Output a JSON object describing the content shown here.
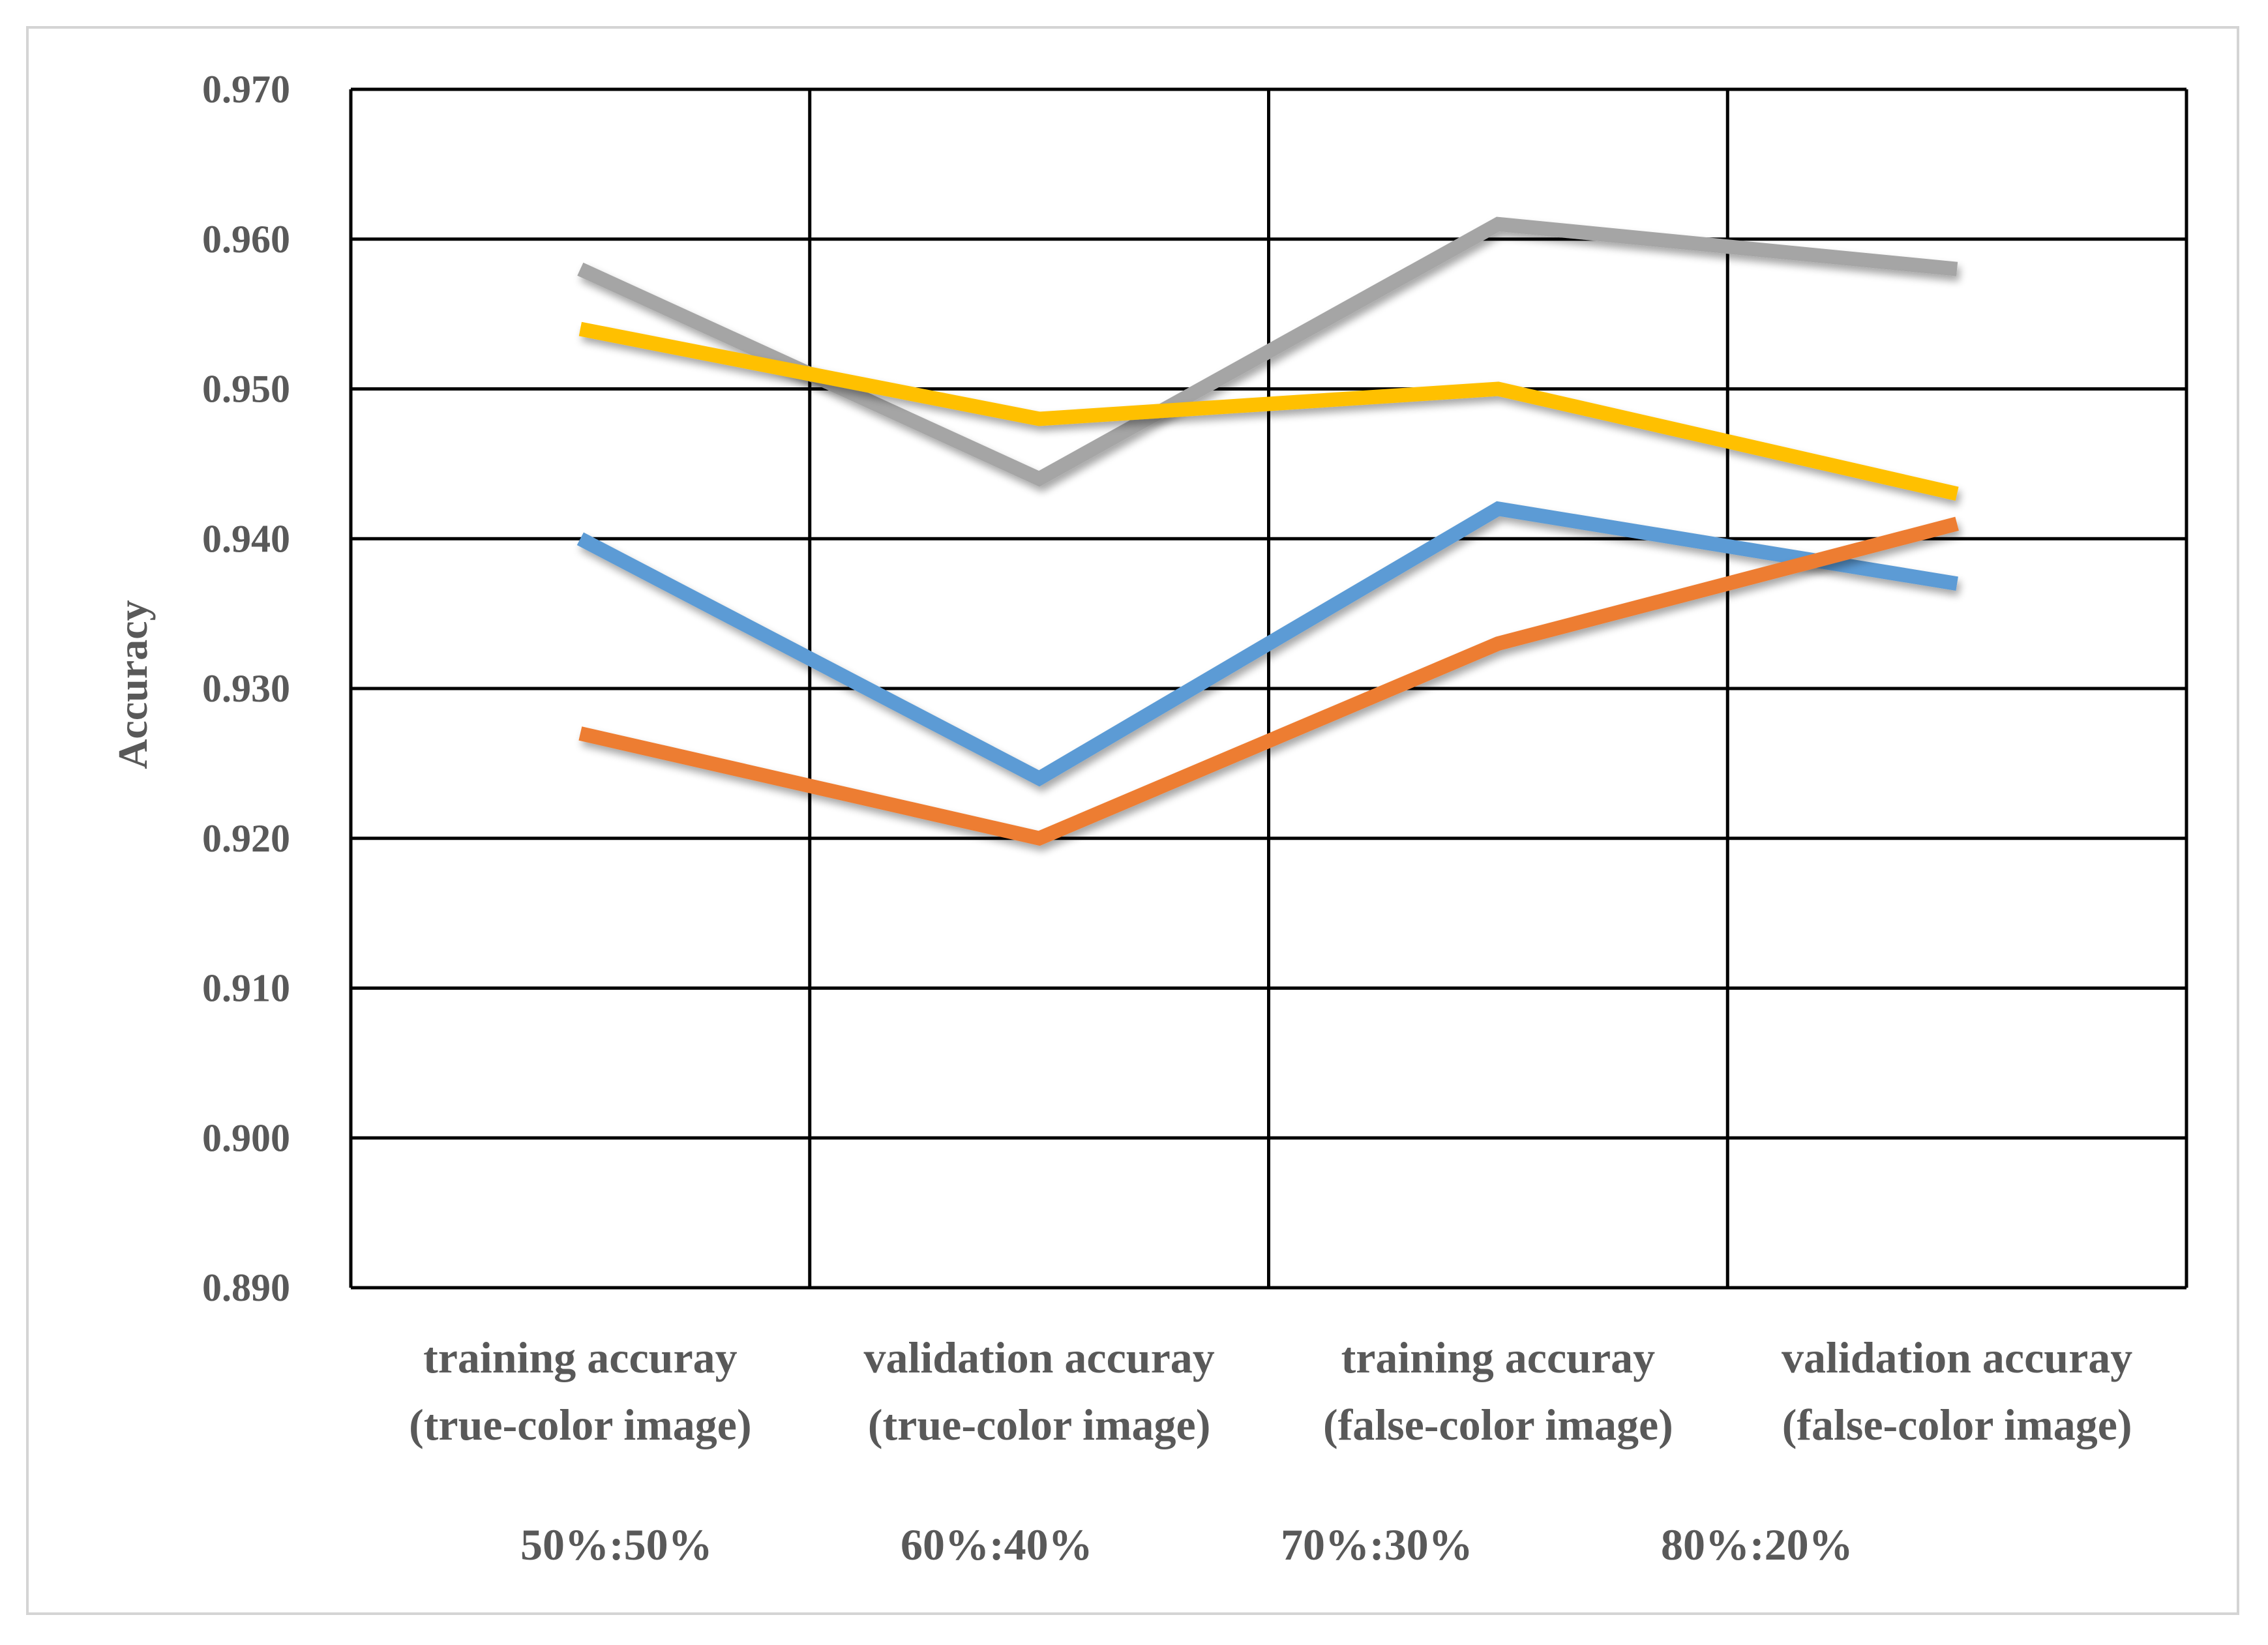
{
  "chart_data": {
    "type": "line",
    "title": "",
    "xlabel": "",
    "ylabel": "Accuracy",
    "ylim": [
      0.89,
      0.97
    ],
    "yticks": [
      "0.970",
      "0.960",
      "0.950",
      "0.940",
      "0.930",
      "0.920",
      "0.910",
      "0.900",
      "0.890"
    ],
    "grid": true,
    "legend_position": "bottom",
    "categories": [
      [
        "training accuray",
        "(true-color image)"
      ],
      [
        "validation accuray",
        "(true-color image)"
      ],
      [
        "training accuray",
        "(false-color image)"
      ],
      [
        "validation accuray",
        "(false-color image)"
      ]
    ],
    "series": [
      {
        "name": "50%:50%",
        "color": "#5b9bd5",
        "values": [
          0.94,
          0.924,
          0.942,
          0.937
        ]
      },
      {
        "name": "60%:40%",
        "color": "#ed7d31",
        "values": [
          0.927,
          0.92,
          0.933,
          0.941
        ]
      },
      {
        "name": "70%:30%",
        "color": "#a5a5a5",
        "values": [
          0.958,
          0.944,
          0.961,
          0.958
        ]
      },
      {
        "name": "80%:20%",
        "color": "#ffc000",
        "values": [
          0.954,
          0.948,
          0.95,
          0.943
        ]
      }
    ]
  }
}
